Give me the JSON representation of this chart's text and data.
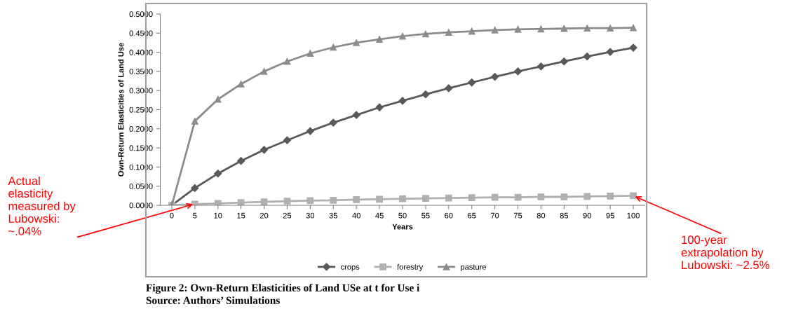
{
  "chart_data": {
    "type": "line",
    "title": "Figure 2: Own-Return Elasticities of Land USe at t for Use i",
    "xlabel": "Years",
    "ylabel": "Own-Return Elasticities of Land Use",
    "categories": [
      "0",
      "5",
      "10",
      "15",
      "20",
      "25",
      "30",
      "35",
      "40",
      "45",
      "50",
      "55",
      "60",
      "65",
      "70",
      "75",
      "80",
      "85",
      "90",
      "95",
      "100"
    ],
    "series": [
      {
        "name": "crops",
        "color": "#595959",
        "marker": "diamond",
        "values": [
          0,
          0.045,
          0.083,
          0.116,
          0.145,
          0.17,
          0.194,
          0.216,
          0.236,
          0.256,
          0.273,
          0.29,
          0.306,
          0.321,
          0.336,
          0.35,
          0.363,
          0.376,
          0.389,
          0.401,
          0.412
        ]
      },
      {
        "name": "forestry",
        "color": "#b0b0b0",
        "marker": "square",
        "values": [
          0,
          0.003,
          0.005,
          0.007,
          0.009,
          0.011,
          0.012,
          0.013,
          0.015,
          0.016,
          0.017,
          0.018,
          0.019,
          0.02,
          0.021,
          0.021,
          0.022,
          0.022,
          0.023,
          0.024,
          0.025
        ]
      },
      {
        "name": "pasture",
        "color": "#8c8c8c",
        "marker": "triangle",
        "values": [
          0,
          0.22,
          0.277,
          0.317,
          0.35,
          0.376,
          0.397,
          0.413,
          0.425,
          0.434,
          0.442,
          0.448,
          0.452,
          0.455,
          0.458,
          0.46,
          0.461,
          0.462,
          0.463,
          0.463,
          0.464
        ]
      }
    ],
    "ylim": [
      0,
      0.5
    ],
    "yticks": [
      {
        "value": 0,
        "label": "0.0000"
      },
      {
        "value": 0.05,
        "label": "0.0500"
      },
      {
        "value": 0.1,
        "label": "0.1000"
      },
      {
        "value": 0.15,
        "label": "0.1500"
      },
      {
        "value": 0.2,
        "label": "0.2000"
      },
      {
        "value": 0.25,
        "label": "0.2500"
      },
      {
        "value": 0.3,
        "label": "0.3000"
      },
      {
        "value": 0.35,
        "label": "0.3500"
      },
      {
        "value": 0.4,
        "label": "0.4000"
      },
      {
        "value": 0.45,
        "label": "0.4500"
      },
      {
        "value": 0.5,
        "label": "0.5000"
      }
    ],
    "grid": false,
    "legend": "bottom",
    "annotations": [
      {
        "text": "Actual\nelasticity\nmeasured by\nLubowski:\n~.04%",
        "x": "5",
        "y": 0.004
      },
      {
        "text": "100-year\nextrapolation by\nLubowski: ~2.5%",
        "x": "100",
        "y": 0.025
      },
      "Source: Authors’ Simulations"
    ]
  }
}
